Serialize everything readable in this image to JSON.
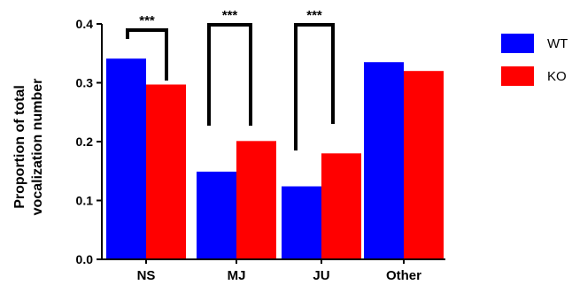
{
  "chart_data": {
    "type": "bar",
    "categories": [
      "NS",
      "MJ",
      "JU",
      "Other"
    ],
    "series": [
      {
        "name": "WT",
        "color": "#0000ff",
        "values": [
          0.341,
          0.149,
          0.124,
          0.335
        ]
      },
      {
        "name": "KO",
        "color": "#ff0000",
        "values": [
          0.297,
          0.201,
          0.18,
          0.32
        ]
      }
    ],
    "ylabel_lines": [
      "Proportion of total",
      "vocalization number"
    ],
    "ylim": [
      0,
      0.4
    ],
    "yticks": [
      {
        "value": 0.0,
        "label": "0.0"
      },
      {
        "value": 0.1,
        "label": "0.1"
      },
      {
        "value": 0.2,
        "label": "0.2"
      },
      {
        "value": 0.3,
        "label": "0.3"
      },
      {
        "value": 0.4,
        "label": "0.4"
      }
    ],
    "grid": false,
    "legend_position": "top-right",
    "significance": [
      {
        "category": "NS",
        "label": "***"
      },
      {
        "category": "MJ",
        "label": "***"
      },
      {
        "category": "JU",
        "label": "***"
      }
    ]
  }
}
